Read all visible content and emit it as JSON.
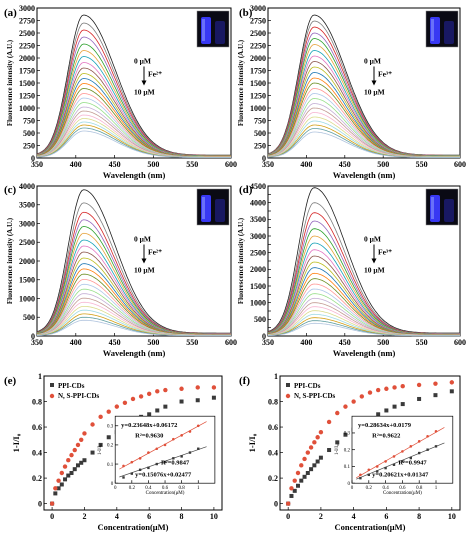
{
  "colors": {
    "curves": [
      "#1f1f1f",
      "#7f7f7f",
      "#d62728",
      "#9467bd",
      "#2ca02c",
      "#e6a23c",
      "#17a2b8",
      "#e377c2",
      "#8c564b",
      "#bcbd22",
      "#1f77b4",
      "#ff7f0e",
      "#6b8e23",
      "#ff9896",
      "#aec7e8",
      "#98df8a",
      "#c5b0d5",
      "#c49c94",
      "#f7b6d2",
      "#dbdb8d",
      "#9edae5",
      "#d4a017",
      "#5f9ea0",
      "#b0c4de"
    ],
    "series_ppi": "#3a3a3a",
    "series_ns": "#e0503a",
    "fit_line": "#444444",
    "photo_bg": "#0a0a14",
    "photo_glow": "#3b3bff"
  },
  "chart_data": [
    {
      "panel": "(a)",
      "type": "line",
      "title": "",
      "xlabel": "Wavelength (nm)",
      "ylabel": "Fluorescence intensity (A.U.)",
      "xlim": [
        350,
        600
      ],
      "ylim": [
        0,
        3000
      ],
      "xticks": [
        350,
        400,
        450,
        500,
        550,
        600
      ],
      "yticks": [
        0,
        250,
        500,
        750,
        1000,
        1250,
        1500,
        1750,
        2000,
        2250,
        2500,
        2750,
        3000
      ],
      "peak_x": 410,
      "peaks": [
        2860,
        2700,
        2560,
        2420,
        2280,
        2150,
        2030,
        1910,
        1800,
        1690,
        1590,
        1490,
        1390,
        1290,
        1200,
        1110,
        1020,
        940,
        860,
        790,
        720,
        660,
        600,
        540
      ],
      "annotation": {
        "start": "0 μM",
        "ion": "Fe²⁺",
        "end": "10 μM"
      }
    },
    {
      "panel": "(b)",
      "type": "line",
      "title": "",
      "xlabel": "Wavelength (nm)",
      "ylabel": "Fluorescence intensity (A.U.)",
      "xlim": [
        350,
        600
      ],
      "ylim": [
        0,
        3000
      ],
      "xticks": [
        350,
        400,
        450,
        500,
        550,
        600
      ],
      "yticks": [
        0,
        250,
        500,
        750,
        1000,
        1250,
        1500,
        1750,
        2000,
        2250,
        2500,
        2750,
        3000
      ],
      "peak_x": 410,
      "peaks": [
        2860,
        2740,
        2620,
        2500,
        2390,
        2270,
        2150,
        2040,
        1930,
        1820,
        1710,
        1600,
        1500,
        1390,
        1290,
        1190,
        1090,
        1000,
        910,
        820,
        740,
        660,
        590,
        520
      ],
      "annotation": {
        "start": "0 μM",
        "ion": "Fe³⁺",
        "end": "10 μM"
      }
    },
    {
      "panel": "(c)",
      "type": "line",
      "title": "",
      "xlabel": "Wavelength (nm)",
      "ylabel": "Fluorescence intensity (A.U.)",
      "xlim": [
        350,
        600
      ],
      "ylim": [
        0,
        4000
      ],
      "xticks": [
        350,
        400,
        450,
        500,
        550,
        600
      ],
      "yticks": [
        0,
        500,
        1000,
        1500,
        2000,
        2500,
        3000,
        3500,
        4000
      ],
      "peak_x": 410,
      "peaks": [
        3900,
        3550,
        3300,
        3100,
        2920,
        2740,
        2560,
        2400,
        2240,
        2080,
        1930,
        1790,
        1650,
        1510,
        1380,
        1250,
        1130,
        1010,
        900,
        790,
        690,
        590,
        500,
        420
      ],
      "annotation": {
        "start": "0 μM",
        "ion": "Fe²⁺",
        "end": "10 μM"
      }
    },
    {
      "panel": "(d)",
      "type": "line",
      "title": "",
      "xlabel": "Wavelength (nm)",
      "ylabel": "Fluorescence intensity (A.U.)",
      "xlim": [
        350,
        600
      ],
      "ylim": [
        0,
        4500
      ],
      "xticks": [
        350,
        400,
        450,
        500,
        550,
        600
      ],
      "yticks": [
        0,
        250,
        500,
        750,
        1000,
        1250,
        1500,
        1750,
        2000,
        2250,
        2500,
        2750,
        3000,
        3250,
        3500,
        3750,
        4000,
        4250,
        4500
      ],
      "ytick_labels_shown": [
        0,
        500,
        1000,
        1500,
        2000,
        2500,
        3000,
        3500,
        4000,
        4500
      ],
      "peak_x": 410,
      "peaks": [
        4450,
        4000,
        3700,
        3450,
        3220,
        3000,
        2790,
        2590,
        2400,
        2220,
        2050,
        1880,
        1720,
        1560,
        1410,
        1270,
        1130,
        1000,
        880,
        760,
        650,
        550,
        460,
        380
      ],
      "annotation": {
        "start": "0 μM",
        "ion": "Fe³⁺",
        "end": "10 μM"
      }
    },
    {
      "panel": "(e)",
      "type": "scatter",
      "title": "",
      "xlabel": "Concentration(μM)",
      "ylabel": "1-I/I₀",
      "xlim": [
        -0.5,
        10.5
      ],
      "ylim": [
        -0.05,
        1.0
      ],
      "xticks": [
        0,
        2,
        4,
        6,
        8,
        10
      ],
      "yticks": [
        0.0,
        0.2,
        0.4,
        0.6,
        0.8,
        1.0
      ],
      "x": [
        0,
        0.2,
        0.4,
        0.6,
        0.8,
        1.0,
        1.2,
        1.4,
        1.6,
        1.8,
        2.0,
        2.5,
        3.0,
        3.5,
        4.0,
        4.5,
        5.0,
        5.5,
        6.0,
        6.5,
        7.0,
        8.0,
        9.0,
        10.0
      ],
      "series": [
        {
          "name": "PPI-CDs",
          "values": [
            0.0,
            0.08,
            0.12,
            0.15,
            0.19,
            0.22,
            0.24,
            0.27,
            0.3,
            0.32,
            0.34,
            0.4,
            0.46,
            0.52,
            0.56,
            0.6,
            0.64,
            0.68,
            0.7,
            0.73,
            0.76,
            0.8,
            0.81,
            0.83
          ]
        },
        {
          "name": "N, S-PPI-CDs",
          "values": [
            0.0,
            0.12,
            0.18,
            0.24,
            0.29,
            0.34,
            0.38,
            0.42,
            0.46,
            0.5,
            0.55,
            0.62,
            0.68,
            0.72,
            0.76,
            0.79,
            0.82,
            0.84,
            0.86,
            0.88,
            0.89,
            0.9,
            0.91,
            0.91
          ]
        }
      ],
      "legend": "top-left",
      "inset": {
        "xlabel": "Concentration(μM)",
        "ylabel": "1-I/I₀",
        "xlim": [
          0,
          1.2
        ],
        "ylim": [
          0,
          0.35
        ],
        "xticks": [
          0.0,
          0.2,
          0.4,
          0.6,
          0.8,
          1.0
        ],
        "yticks": [
          0.0,
          0.1,
          0.2,
          0.3
        ],
        "x": [
          0.1,
          0.2,
          0.3,
          0.4,
          0.5,
          0.6,
          0.7,
          0.8,
          0.9,
          1.0
        ],
        "series": [
          {
            "values": [
              0.03,
              0.05,
              0.07,
              0.08,
              0.1,
              0.11,
              0.13,
              0.14,
              0.16,
              0.18
            ]
          },
          {
            "values": [
              0.09,
              0.11,
              0.13,
              0.16,
              0.18,
              0.2,
              0.23,
              0.25,
              0.27,
              0.3
            ]
          }
        ],
        "fits": [
          {
            "slope": 0.15076,
            "intercept": 0.02477
          },
          {
            "slope": 0.23648,
            "intercept": 0.06172
          }
        ],
        "equations": [
          "y=0.23648x+0.06172",
          "R²=0.9630",
          "R²=0.9847",
          "y=0.15076x+0.02477"
        ]
      }
    },
    {
      "panel": "(f)",
      "type": "scatter",
      "title": "",
      "xlabel": "Concentration(μM)",
      "ylabel": "1-I/I₀",
      "xlim": [
        -0.5,
        10.5
      ],
      "ylim": [
        -0.05,
        1.0
      ],
      "xticks": [
        0,
        2,
        4,
        6,
        8,
        10
      ],
      "yticks": [
        0.0,
        0.2,
        0.4,
        0.6,
        0.8,
        1.0
      ],
      "x": [
        0,
        0.2,
        0.4,
        0.6,
        0.8,
        1.0,
        1.2,
        1.4,
        1.6,
        1.8,
        2.0,
        2.5,
        3.0,
        3.5,
        4.0,
        4.5,
        5.0,
        5.5,
        6.0,
        6.5,
        7.0,
        8.0,
        9.0,
        10.0
      ],
      "series": [
        {
          "name": "PPI-CDs",
          "values": [
            0.0,
            0.06,
            0.1,
            0.14,
            0.18,
            0.21,
            0.24,
            0.27,
            0.3,
            0.33,
            0.36,
            0.42,
            0.48,
            0.54,
            0.58,
            0.62,
            0.66,
            0.7,
            0.73,
            0.76,
            0.78,
            0.82,
            0.85,
            0.88
          ]
        },
        {
          "name": "N, S-PPI-CDs",
          "values": [
            0.0,
            0.12,
            0.18,
            0.24,
            0.3,
            0.35,
            0.4,
            0.44,
            0.48,
            0.52,
            0.56,
            0.64,
            0.71,
            0.76,
            0.8,
            0.84,
            0.87,
            0.89,
            0.9,
            0.91,
            0.92,
            0.93,
            0.94,
            0.95
          ]
        }
      ],
      "legend": "top-left",
      "inset": {
        "xlabel": "Concentration(μM)",
        "ylabel": "1-I/I₀",
        "xlim": [
          0,
          1.2
        ],
        "ylim": [
          0,
          0.4
        ],
        "xticks": [
          0.0,
          0.2,
          0.4,
          0.6,
          0.8,
          1.0
        ],
        "yticks": [
          0.0,
          0.1,
          0.2,
          0.3
        ],
        "x": [
          0.1,
          0.2,
          0.3,
          0.4,
          0.5,
          0.6,
          0.7,
          0.8,
          0.9,
          1.0
        ],
        "series": [
          {
            "values": [
              0.03,
              0.05,
              0.07,
              0.09,
              0.11,
              0.13,
              0.15,
              0.18,
              0.2,
              0.22
            ]
          },
          {
            "values": [
              0.05,
              0.08,
              0.1,
              0.13,
              0.16,
              0.19,
              0.22,
              0.25,
              0.28,
              0.31
            ]
          }
        ],
        "fits": [
          {
            "slope": 0.20621,
            "intercept": 0.01347
          },
          {
            "slope": 0.28634,
            "intercept": 0.0179
          }
        ],
        "equations": [
          "y=0.28634x+0.0179",
          "R²=0.9622",
          "R²=0.9947",
          "y=0.20621x+0.01347"
        ]
      }
    }
  ]
}
